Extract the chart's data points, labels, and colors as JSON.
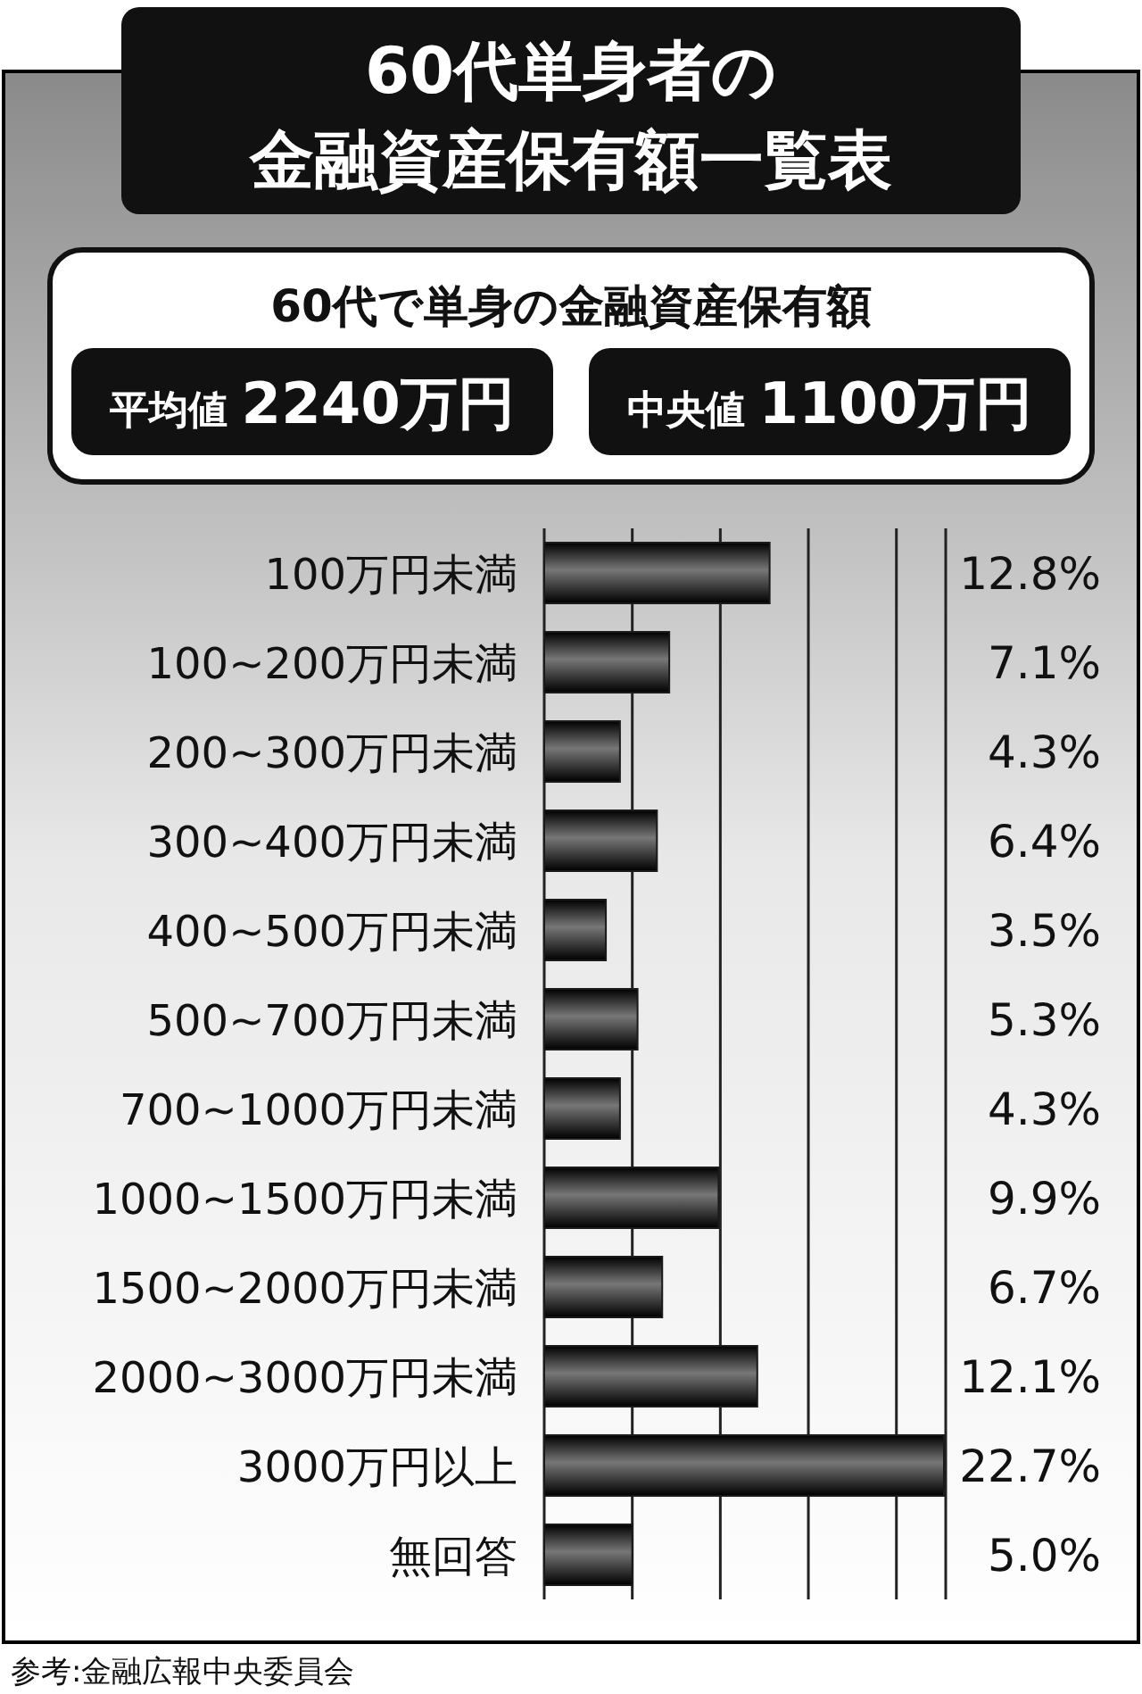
{
  "chart_data": {
    "type": "bar",
    "orientation": "horizontal",
    "title": "60代単身者の",
    "subtitle": "金融資産保有額一覧表",
    "categories": [
      "100万円未満",
      "100~200万円未満",
      "200~300万円未満",
      "300~400万円未満",
      "400~500万円未満",
      "500~700万円未満",
      "700~1000万円未満",
      "1000~1500万円未満",
      "1500~2000万円未満",
      "2000~3000万円未満",
      "3000万円以上",
      "無回答"
    ],
    "values": [
      12.8,
      7.1,
      4.3,
      6.4,
      3.5,
      5.3,
      4.3,
      9.9,
      6.7,
      12.1,
      22.7,
      5.0
    ],
    "value_labels": [
      "12.8%",
      "7.1%",
      "4.3%",
      "6.4%",
      "3.5%",
      "5.3%",
      "4.3%",
      "9.9%",
      "6.7%",
      "12.1%",
      "22.7%",
      "5.0%"
    ],
    "color": "#1a1a1a",
    "xlim": [
      0,
      22.8
    ],
    "xticks": [
      {
        "value": 5,
        "label": null
      },
      {
        "value": 10,
        "label": null
      },
      {
        "value": 15,
        "label": null
      },
      {
        "value": 20,
        "label": null
      }
    ],
    "grid": "x",
    "tick_labels": "y",
    "annotations": [
      "60代で単身の金融資産保有額",
      "平均値 2240万円",
      "中央値 1100万円",
      "参考:金融広報中央委員会"
    ]
  }
}
